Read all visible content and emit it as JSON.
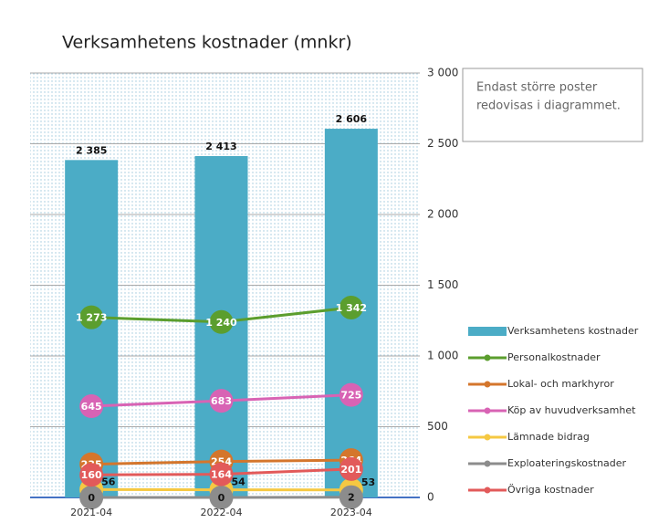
{
  "chart_data": {
    "type": "bar-line",
    "title": "Verksamhetens kostnader (mnkr)",
    "annotation": [
      "Endast större poster",
      "redovisas i diagrammet."
    ],
    "categories": [
      "2021-04",
      "2022-04",
      "2023-04"
    ],
    "ylim": [
      0,
      3000
    ],
    "yticks": [
      0,
      500,
      {
        "value": 1000,
        "label": "1 000"
      },
      {
        "value": 1500,
        "label": "1 500"
      },
      {
        "value": 2000,
        "label": "2 000"
      },
      {
        "value": 2500,
        "label": "2 500"
      },
      {
        "value": 3000,
        "label": "3 000"
      }
    ],
    "grid": true,
    "legend": "right",
    "series": [
      {
        "name": "Verksamhetens kostnader",
        "type": "bar",
        "color": "#4bacc6",
        "values": [
          2385,
          2413,
          2606
        ],
        "value_labels": [
          "2 385",
          "2 413",
          "2 606"
        ]
      },
      {
        "name": "Personalkostnader",
        "type": "line",
        "color": "#5b9e2e",
        "values": [
          1273,
          1240,
          1342
        ],
        "value_labels": [
          "1 273",
          "1 240",
          "1 342"
        ]
      },
      {
        "name": "Lokal- och markhyror",
        "type": "line",
        "color": "#d4762c",
        "values": [
          235,
          254,
          264
        ]
      },
      {
        "name": "Köp av huvudverksamhet",
        "type": "line",
        "color": "#d863b4",
        "values": [
          645,
          683,
          725
        ]
      },
      {
        "name": "Lämnade bidrag",
        "type": "line",
        "color": "#f5c842",
        "values": [
          56,
          54,
          53
        ]
      },
      {
        "name": "Exploateringskostnader",
        "type": "line",
        "color": "#8c8c8c",
        "values": [
          0,
          0,
          2
        ]
      },
      {
        "name": "Övriga kostnader",
        "type": "line",
        "color": "#e25a5a",
        "values": [
          160,
          164,
          201
        ]
      }
    ]
  }
}
